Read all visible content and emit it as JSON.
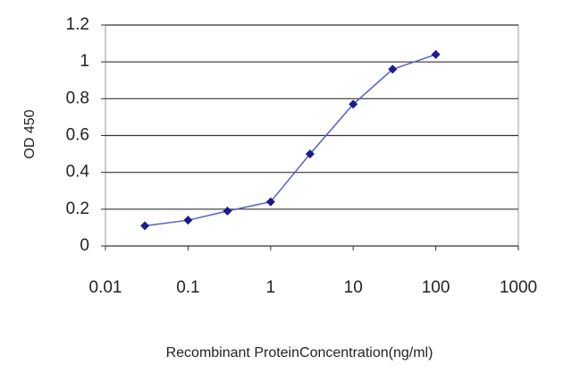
{
  "chart_data": {
    "type": "line",
    "xlabel": "Recombinant ProteinConcentration(ng/ml)",
    "ylabel": "OD 450",
    "x": [
      0.03,
      0.1,
      0.3,
      1,
      3,
      10,
      30,
      100
    ],
    "values": [
      0.11,
      0.14,
      0.19,
      0.24,
      0.5,
      0.77,
      0.96,
      1.04
    ],
    "color": "#1c1c8e",
    "xlim": [
      0.01,
      1000
    ],
    "xticks": [
      0.01,
      0.1,
      1,
      10,
      100,
      1000
    ],
    "xlog": true,
    "ylim": [
      0,
      1.2
    ],
    "yticks": [
      0,
      0.2,
      0.4,
      0.6,
      0.8,
      1,
      1.2
    ],
    "grid": true
  }
}
